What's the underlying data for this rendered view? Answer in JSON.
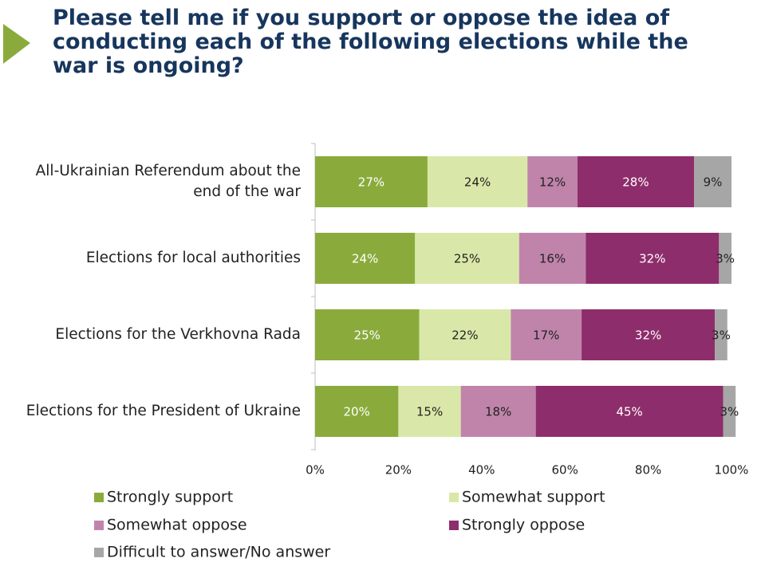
{
  "chart_data": {
    "type": "stacked-bar-horizontal",
    "title": "Please tell me if you support or oppose the idea of conducting each of the following elections while the war is ongoing?",
    "categories": [
      "All-Ukrainian Referendum about the end of the war",
      "Elections for local authorities",
      "Elections for the Verkhovna Rada",
      "Elections for the President of Ukraine"
    ],
    "series": [
      {
        "name": "Strongly support",
        "color": "#8aab3c",
        "values": [
          27,
          24,
          25,
          20
        ],
        "value_labels": [
          "27%",
          "24%",
          "25%",
          "20%"
        ]
      },
      {
        "name": "Somewhat support",
        "color": "#d9e8a8",
        "values": [
          24,
          25,
          22,
          15
        ],
        "value_labels": [
          "24%",
          "25%",
          "22%",
          "15%"
        ]
      },
      {
        "name": "Somewhat oppose",
        "color": "#c084ab",
        "values": [
          12,
          16,
          17,
          18
        ],
        "value_labels": [
          "12%",
          "16%",
          "17%",
          "18%"
        ]
      },
      {
        "name": "Strongly oppose",
        "color": "#8e2d6b",
        "values": [
          28,
          32,
          32,
          45
        ],
        "value_labels": [
          "28%",
          "32%",
          "32%",
          "45%"
        ]
      },
      {
        "name": "Difficult to answer/No answer",
        "color": "#a6a6a6",
        "values": [
          9,
          3,
          3,
          3
        ],
        "value_labels": [
          "9%",
          "3%",
          "3%",
          "3%"
        ]
      }
    ],
    "xlim": [
      0,
      100
    ],
    "xticks": [
      {
        "value": 0,
        "label": "0%"
      },
      {
        "value": 20,
        "label": "20%"
      },
      {
        "value": 40,
        "label": "40%"
      },
      {
        "value": 60,
        "label": "60%"
      },
      {
        "value": 80,
        "label": "80%"
      },
      {
        "value": 100,
        "label": "100%"
      }
    ]
  }
}
